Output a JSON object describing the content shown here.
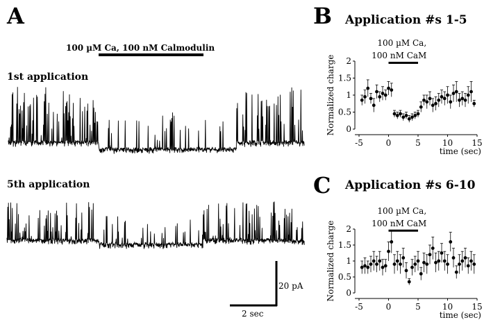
{
  "panel_a": {
    "letter": "A",
    "application_label": "100 µM Ca, 100 nM Calmodulin",
    "trace1_label": "1st application",
    "trace2_label": "5th application",
    "scale_y_label": "20 pA",
    "scale_x_label": "2 sec"
  },
  "chart_data": [
    {
      "type": "scatter",
      "panel": "B",
      "title": "Application #s 1-5",
      "xlabel": "time (sec)",
      "ylabel": "Normalized charge",
      "annotation": [
        "100 µM Ca,",
        "100 nM CaM"
      ],
      "application_window": [
        0,
        5
      ],
      "xlim": [
        -5,
        15
      ],
      "ylim": [
        0,
        2
      ],
      "xticks": [
        -5,
        0,
        5,
        10,
        15
      ],
      "yticks": [
        0,
        0.5,
        1,
        1.5,
        2
      ],
      "grid": false,
      "series": [
        {
          "x": [
            -4.5,
            -4,
            -3.5,
            -3,
            -2.5,
            -2,
            -1.5,
            -1,
            -0.5,
            0,
            0.5,
            1,
            1.5,
            2,
            2.5,
            3,
            3.5,
            4,
            4.5,
            5,
            5.5,
            6,
            6.5,
            7,
            7.5,
            8,
            8.5,
            9,
            9.5,
            10,
            10.5,
            11,
            11.5,
            12,
            12.5,
            13,
            13.5,
            14,
            14.5
          ],
          "y": [
            0.85,
            0.95,
            1.2,
            0.9,
            0.7,
            1.1,
            0.95,
            1.05,
            1.0,
            1.2,
            1.15,
            0.45,
            0.4,
            0.45,
            0.35,
            0.4,
            0.3,
            0.35,
            0.4,
            0.45,
            0.65,
            0.85,
            0.8,
            0.9,
            0.7,
            0.75,
            0.85,
            0.95,
            0.9,
            1.0,
            0.8,
            1.05,
            1.1,
            0.85,
            0.9,
            0.85,
            1.0,
            1.1,
            0.75
          ],
          "err": [
            0.15,
            0.2,
            0.25,
            0.15,
            0.2,
            0.2,
            0.15,
            0.2,
            0.15,
            0.2,
            0.2,
            0.1,
            0.1,
            0.1,
            0.1,
            0.1,
            0.1,
            0.1,
            0.1,
            0.1,
            0.15,
            0.15,
            0.2,
            0.2,
            0.2,
            0.2,
            0.2,
            0.2,
            0.2,
            0.25,
            0.2,
            0.25,
            0.3,
            0.2,
            0.2,
            0.2,
            0.25,
            0.3,
            0.1
          ]
        }
      ]
    },
    {
      "type": "scatter",
      "panel": "C",
      "title": "Application #s 6-10",
      "xlabel": "time (sec)",
      "ylabel": "Normalized charge",
      "annotation": [
        "100 µM Ca,",
        "100 nM CaM"
      ],
      "application_window": [
        0,
        5
      ],
      "xlim": [
        -5,
        15
      ],
      "ylim": [
        0,
        2
      ],
      "xticks": [
        -5,
        0,
        5,
        10,
        15
      ],
      "yticks": [
        0,
        0.5,
        1,
        1.5,
        2
      ],
      "grid": false,
      "series": [
        {
          "x": [
            -4.5,
            -4,
            -3.5,
            -3,
            -2.5,
            -2,
            -1.5,
            -1,
            -0.5,
            0,
            0.5,
            1,
            1.5,
            2,
            2.5,
            3,
            3.5,
            4,
            4.5,
            5,
            5.5,
            6,
            6.5,
            7,
            7.5,
            8,
            8.5,
            9,
            9.5,
            10,
            10.5,
            11,
            11.5,
            12,
            12.5,
            13,
            13.5,
            14,
            14.5
          ],
          "y": [
            0.8,
            0.85,
            0.8,
            0.9,
            1.0,
            0.9,
            1.0,
            0.8,
            0.85,
            1.3,
            1.6,
            0.9,
            1.0,
            0.9,
            1.1,
            0.7,
            0.35,
            0.8,
            0.9,
            1.0,
            0.6,
            0.95,
            0.9,
            1.2,
            1.4,
            0.95,
            1.0,
            1.25,
            1.0,
            0.9,
            1.6,
            1.1,
            0.65,
            0.9,
            1.0,
            1.1,
            0.85,
            1.0,
            0.9
          ],
          "err": [
            0.2,
            0.25,
            0.2,
            0.25,
            0.3,
            0.25,
            0.3,
            0.25,
            0.2,
            0.3,
            0.35,
            0.3,
            0.3,
            0.3,
            0.3,
            0.25,
            0.1,
            0.25,
            0.25,
            0.3,
            0.2,
            0.3,
            0.3,
            0.3,
            0.35,
            0.3,
            0.3,
            0.3,
            0.3,
            0.3,
            0.3,
            0.3,
            0.2,
            0.3,
            0.3,
            0.3,
            0.25,
            0.3,
            0.3
          ]
        }
      ]
    }
  ]
}
